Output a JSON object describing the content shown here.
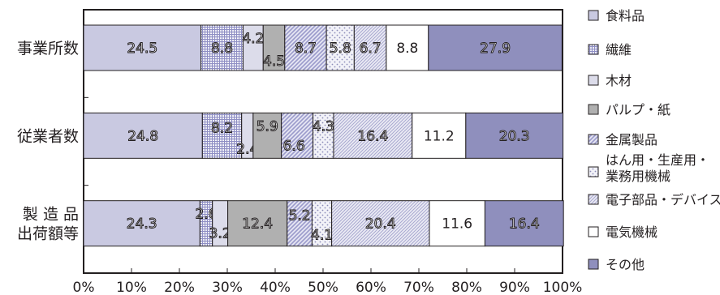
{
  "chart_data": {
    "type": "bar",
    "orientation": "horizontal",
    "stacked": true,
    "xlim": [
      0,
      100
    ],
    "x_ticks": [
      "0%",
      "10%",
      "20%",
      "30%",
      "40%",
      "50%",
      "60%",
      "70%",
      "80%",
      "90%",
      "100%"
    ],
    "categories": [
      "事業所数",
      "従業者数",
      "製 造 品|出荷額等"
    ],
    "series": [
      {
        "name": "食料品",
        "color": "#c9c9e1",
        "pattern": "solid",
        "values": [
          24.5,
          24.8,
          24.3
        ],
        "labels": [
          "24.5",
          "24.8",
          "24.3"
        ]
      },
      {
        "name": "繊維",
        "color": "#9a9ac8",
        "pattern": "grid",
        "values": [
          8.8,
          8.2,
          2.6
        ],
        "labels": [
          "8.8",
          "8.2",
          "2.6"
        ]
      },
      {
        "name": "木材",
        "color": "#dcdcea",
        "pattern": "solid",
        "values": [
          4.2,
          2.4,
          3.2
        ],
        "labels": [
          "4.2",
          "2.4",
          "3.2"
        ]
      },
      {
        "name": "パルプ・紙",
        "color": "#b0b0b0",
        "pattern": "solid",
        "values": [
          4.5,
          5.9,
          12.4
        ],
        "labels": [
          "4.5",
          "5.9",
          "12.4"
        ]
      },
      {
        "name": "金属製品",
        "color": "#a3a3cc",
        "pattern": "diagonal",
        "values": [
          8.7,
          6.6,
          5.2
        ],
        "labels": [
          "8.7",
          "6.6",
          "5.2"
        ]
      },
      {
        "name": "はん用・生産用・業務用機械",
        "color": "#8c8cb8",
        "pattern": "dots",
        "values": [
          5.8,
          4.3,
          4.1
        ],
        "labels": [
          "5.8",
          "4.3",
          "4.1"
        ]
      },
      {
        "name": "電子部品・デバイス",
        "color": "#a3a3cc",
        "pattern": "dense",
        "values": [
          6.7,
          16.4,
          20.4
        ],
        "labels": [
          "6.7",
          "16.4",
          "20.4"
        ]
      },
      {
        "name": "電気機械",
        "color": "#ffffff",
        "pattern": "solid",
        "values": [
          8.8,
          11.2,
          11.6
        ],
        "labels": [
          "8.8",
          "11.2",
          "11.6"
        ]
      },
      {
        "name": "その他",
        "color": "#8f8fbd",
        "pattern": "solid",
        "values": [
          27.9,
          20.3,
          16.4
        ],
        "labels": [
          "27.9",
          "20.3",
          "16.4"
        ]
      }
    ],
    "legend": {
      "placement": "right",
      "items": [
        {
          "lines": [
            "食料品"
          ]
        },
        {
          "lines": [
            "繊維"
          ]
        },
        {
          "lines": [
            "木材"
          ]
        },
        {
          "lines": [
            "パルプ・紙"
          ]
        },
        {
          "lines": [
            "金属製品"
          ]
        },
        {
          "lines": [
            "はん用・生産用・",
            "業務用機械"
          ]
        },
        {
          "lines": [
            "電子部品・デバイス"
          ]
        },
        {
          "lines": [
            "電気機械"
          ]
        },
        {
          "lines": [
            "その他"
          ]
        }
      ]
    }
  }
}
